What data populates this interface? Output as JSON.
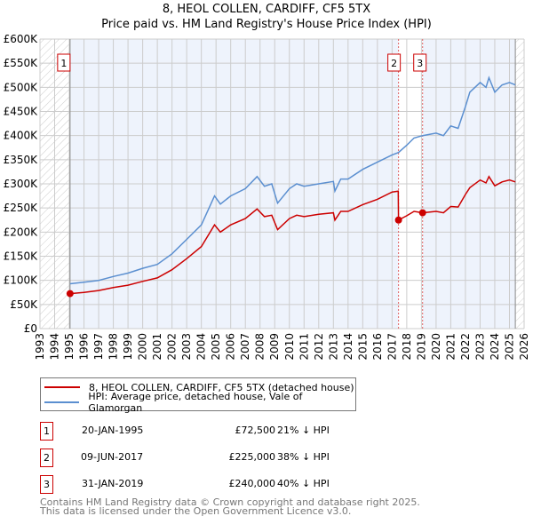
{
  "title": "8, HEOL COLLEN, CARDIFF, CF5 5TX",
  "subtitle": "Price paid vs. HM Land Registry's House Price Index (HPI)",
  "colors": {
    "property": "#cc0000",
    "hpi": "#5b8fd0",
    "shade": "#eef3fc"
  },
  "chart_data": {
    "type": "line",
    "title": "Price paid vs. HM Land Registry's House Price Index (HPI)",
    "xlim": [
      1993,
      2026
    ],
    "ylim": [
      0,
      600000
    ],
    "x_ticks": [
      "1993",
      "1994",
      "1995",
      "1996",
      "1997",
      "1998",
      "1999",
      "2000",
      "2001",
      "2002",
      "2003",
      "2004",
      "2005",
      "2006",
      "2007",
      "2008",
      "2009",
      "2010",
      "2011",
      "2012",
      "2013",
      "2014",
      "2015",
      "2016",
      "2017",
      "2018",
      "2019",
      "2020",
      "2021",
      "2022",
      "2023",
      "2024",
      "2025",
      "2026"
    ],
    "y_ticks": [
      {
        "v": 0,
        "label": "£0"
      },
      {
        "v": 50000,
        "label": "£50K"
      },
      {
        "v": 100000,
        "label": "£100K"
      },
      {
        "v": 150000,
        "label": "£150K"
      },
      {
        "v": 200000,
        "label": "£200K"
      },
      {
        "v": 250000,
        "label": "£250K"
      },
      {
        "v": 300000,
        "label": "£300K"
      },
      {
        "v": 350000,
        "label": "£350K"
      },
      {
        "v": 400000,
        "label": "£400K"
      },
      {
        "v": 450000,
        "label": "£450K"
      },
      {
        "v": 500000,
        "label": "£500K"
      },
      {
        "v": 550000,
        "label": "£550K"
      },
      {
        "v": 600000,
        "label": "£600K"
      }
    ],
    "grid": true,
    "legend_placement": "below",
    "data_start": 1995.05,
    "data_end": 2025.4,
    "series": [
      {
        "name": "8, HEOL COLLEN, CARDIFF, CF5 5TX (detached house)",
        "color": "#cc0000",
        "x": [
          1995.05,
          1996,
          1997,
          1998,
          1999,
          2000,
          2001,
          2002,
          2003,
          2004,
          2004.9,
          2005.3,
          2006,
          2007,
          2007.8,
          2008.3,
          2008.8,
          2009.2,
          2010,
          2010.5,
          2011,
          2012,
          2013,
          2013.1,
          2013.5,
          2014,
          2015,
          2016,
          2017,
          2017.42,
          2017.44,
          2018,
          2018.5,
          2019.08,
          2020,
          2020.5,
          2021,
          2021.5,
          2022,
          2022.3,
          2023,
          2023.4,
          2023.6,
          2024,
          2024.5,
          2025,
          2025.4
        ],
        "y": [
          72500,
          75000,
          79000,
          85000,
          90000,
          98000,
          105000,
          122000,
          145000,
          170000,
          215000,
          200000,
          215000,
          228000,
          248000,
          232000,
          235000,
          205000,
          228000,
          235000,
          232000,
          237000,
          240000,
          225000,
          243000,
          243000,
          257000,
          268000,
          283000,
          285000,
          225000,
          234000,
          243000,
          240000,
          243000,
          240000,
          253000,
          252000,
          278000,
          292000,
          308000,
          302000,
          315000,
          296000,
          304000,
          308000,
          304000
        ]
      },
      {
        "name": "HPI: Average price, detached house, Vale of Glamorgan",
        "color": "#5b8fd0",
        "x": [
          1995.05,
          1996,
          1997,
          1998,
          1999,
          2000,
          2001,
          2002,
          2003,
          2004,
          2004.9,
          2005.3,
          2006,
          2007,
          2007.8,
          2008.3,
          2008.8,
          2009.2,
          2010,
          2010.5,
          2011,
          2012,
          2013,
          2013.1,
          2013.5,
          2014,
          2015,
          2016,
          2017,
          2017.44,
          2018,
          2018.5,
          2019.08,
          2020,
          2020.5,
          2021,
          2021.5,
          2022,
          2022.3,
          2023,
          2023.4,
          2023.6,
          2024,
          2024.5,
          2025,
          2025.4
        ],
        "y": [
          93000,
          96000,
          100000,
          108000,
          115000,
          125000,
          133000,
          155000,
          185000,
          215000,
          275000,
          258000,
          275000,
          290000,
          315000,
          295000,
          300000,
          260000,
          290000,
          300000,
          295000,
          300000,
          305000,
          285000,
          310000,
          310000,
          330000,
          345000,
          360000,
          365000,
          380000,
          395000,
          400000,
          405000,
          400000,
          420000,
          415000,
          460000,
          490000,
          510000,
          500000,
          520000,
          490000,
          505000,
          510000,
          505000
        ]
      }
    ],
    "sales": [
      {
        "id": "1",
        "x": 1995.05,
        "y": 72500
      },
      {
        "id": "2",
        "x": 2017.44,
        "y": 225000
      },
      {
        "id": "3",
        "x": 2019.08,
        "y": 240000
      }
    ]
  },
  "legend": [
    {
      "label": "8, HEOL COLLEN, CARDIFF, CF5 5TX (detached house)"
    },
    {
      "label": "HPI: Average price, detached house, Vale of Glamorgan"
    }
  ],
  "transactions": [
    {
      "id": "1",
      "date": "20-JAN-1995",
      "price": "£72,500",
      "diff": "21% ↓ HPI"
    },
    {
      "id": "2",
      "date": "09-JUN-2017",
      "price": "£225,000",
      "diff": "38% ↓ HPI"
    },
    {
      "id": "3",
      "date": "31-JAN-2019",
      "price": "£240,000",
      "diff": "40% ↓ HPI"
    }
  ],
  "footer": {
    "line1": "Contains HM Land Registry data © Crown copyright and database right 2025.",
    "line2": "This data is licensed under the Open Government Licence v3.0."
  }
}
